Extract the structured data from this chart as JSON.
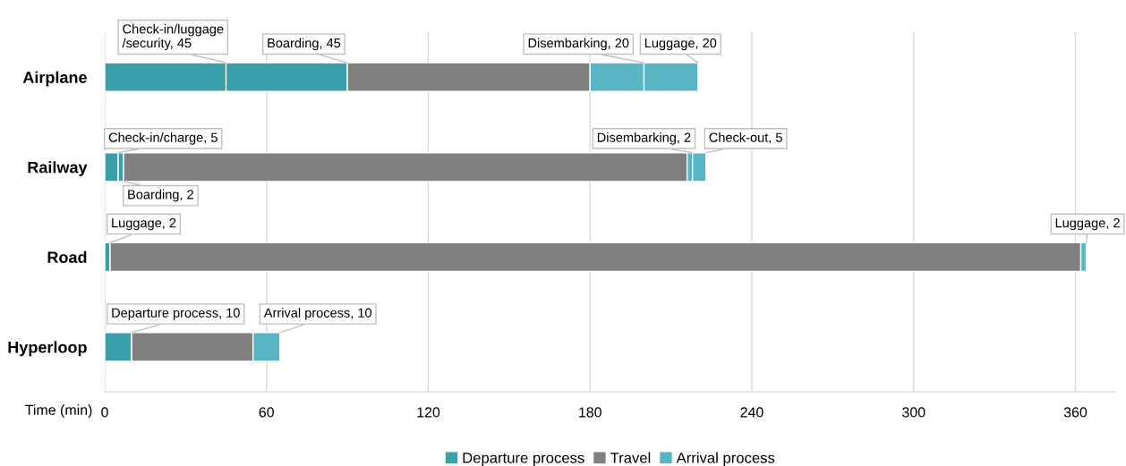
{
  "chart_data": {
    "type": "bar",
    "orientation": "horizontal",
    "stacked": true,
    "categories": [
      "Airplane",
      "Railway",
      "Road",
      "Hyperloop"
    ],
    "series": [
      {
        "name": "Departure process",
        "color": "#3b9eab",
        "values": [
          45,
          5,
          2,
          10
        ]
      },
      {
        "color": "#3b9eab",
        "values": [
          45,
          2,
          null,
          null
        ]
      },
      {
        "name": "Travel",
        "color": "#808080",
        "values": [
          90,
          209,
          360,
          45
        ]
      },
      {
        "name": "Arrival process",
        "color": "#59b4c3",
        "values": [
          20,
          2,
          2,
          10
        ]
      },
      {
        "color": "#59b4c3",
        "values": [
          20,
          5,
          null,
          null
        ]
      }
    ],
    "xlabel": "Time (min)",
    "xlim": [
      0,
      375
    ],
    "xticks": [
      0,
      60,
      120,
      180,
      240,
      300,
      360
    ],
    "grid": "x",
    "legend": "bottom",
    "annotations": [
      {
        "text": "Check-in/luggage\n/security, 45",
        "x": 45,
        "y": "Airplane"
      },
      {
        "text": "Boarding, 45",
        "x": 90,
        "y": "Airplane"
      },
      {
        "text": "Disembarking, 20",
        "x": 200,
        "y": "Airplane"
      },
      {
        "text": "Luggage, 20",
        "x": 220,
        "y": "Airplane"
      },
      {
        "text": "Check-in/charge, 5",
        "x": 5,
        "y": "Railway"
      },
      {
        "text": "Boarding, 2",
        "x": 7,
        "y": "Railway"
      },
      {
        "text": "Disembarking, 2",
        "x": 218,
        "y": "Railway"
      },
      {
        "text": "Check-out, 5",
        "x": 223,
        "y": "Railway"
      },
      {
        "text": "Luggage, 2",
        "x": 2,
        "y": "Road"
      },
      {
        "text": "Luggage, 2",
        "x": 364,
        "y": "Road"
      },
      {
        "text": "Departure process, 10",
        "x": 10,
        "y": "Hyperloop"
      },
      {
        "text": "Arrival process, 10",
        "x": 65,
        "y": "Hyperloop"
      }
    ]
  }
}
